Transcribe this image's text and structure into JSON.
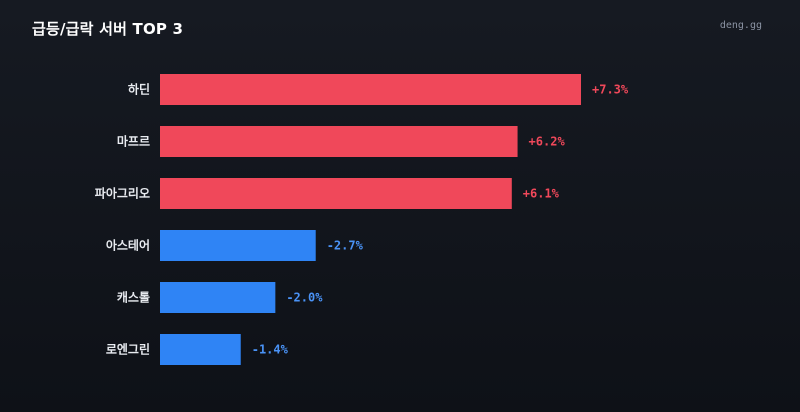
{
  "header": {
    "title": "급등/급락 서버 TOP 3",
    "brand": "deng.gg"
  },
  "colors": {
    "up": "#f0485a",
    "down": "#2f84f5",
    "up_text": "#f0485a",
    "down_text": "#4a93f7"
  },
  "chart_data": {
    "type": "bar",
    "orientation": "horizontal",
    "title": "급등/급락 서버 TOP 3",
    "xlabel": "",
    "ylabel": "",
    "grid": false,
    "legend": "none",
    "categories": [
      "하딘",
      "마프르",
      "파아그리오",
      "아스테어",
      "캐스톨",
      "로엔그린"
    ],
    "values": [
      7.3,
      6.2,
      6.1,
      -2.7,
      -2.0,
      -1.4
    ],
    "value_labels": [
      "+7.3%",
      "+6.2%",
      "+6.1%",
      "-2.7%",
      "-2.0%",
      "-1.4%"
    ],
    "unit": "%"
  }
}
